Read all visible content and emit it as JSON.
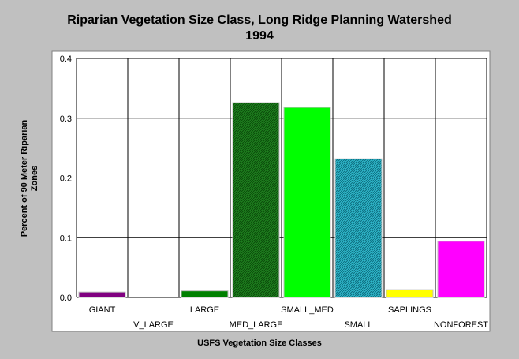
{
  "chart_data": {
    "type": "bar",
    "title": "Riparian Vegetation Size Class, Long Ridge Planning Watershed",
    "subtitle": "1994",
    "xlabel": "USFS Vegetation Size Classes",
    "ylabel": "Percent of 90 Meter Riparian Zones",
    "ylim": [
      0,
      0.4
    ],
    "yticks": [
      "0.0",
      "0.1",
      "0.2",
      "0.3",
      "0.4"
    ],
    "grid": true,
    "categories": [
      "GIANT",
      "V_LARGE",
      "LARGE",
      "MED_LARGE",
      "SMALL_MED",
      "SMALL",
      "SAPLINGS",
      "NONFOREST"
    ],
    "values": [
      0.009,
      0.0,
      0.011,
      0.326,
      0.318,
      0.232,
      0.013,
      0.094
    ],
    "colors": [
      "#800080",
      "#006400",
      "#008000",
      "#008000",
      "#00ff00",
      "#20b2aa",
      "#ffff00",
      "#ff00ff"
    ]
  }
}
